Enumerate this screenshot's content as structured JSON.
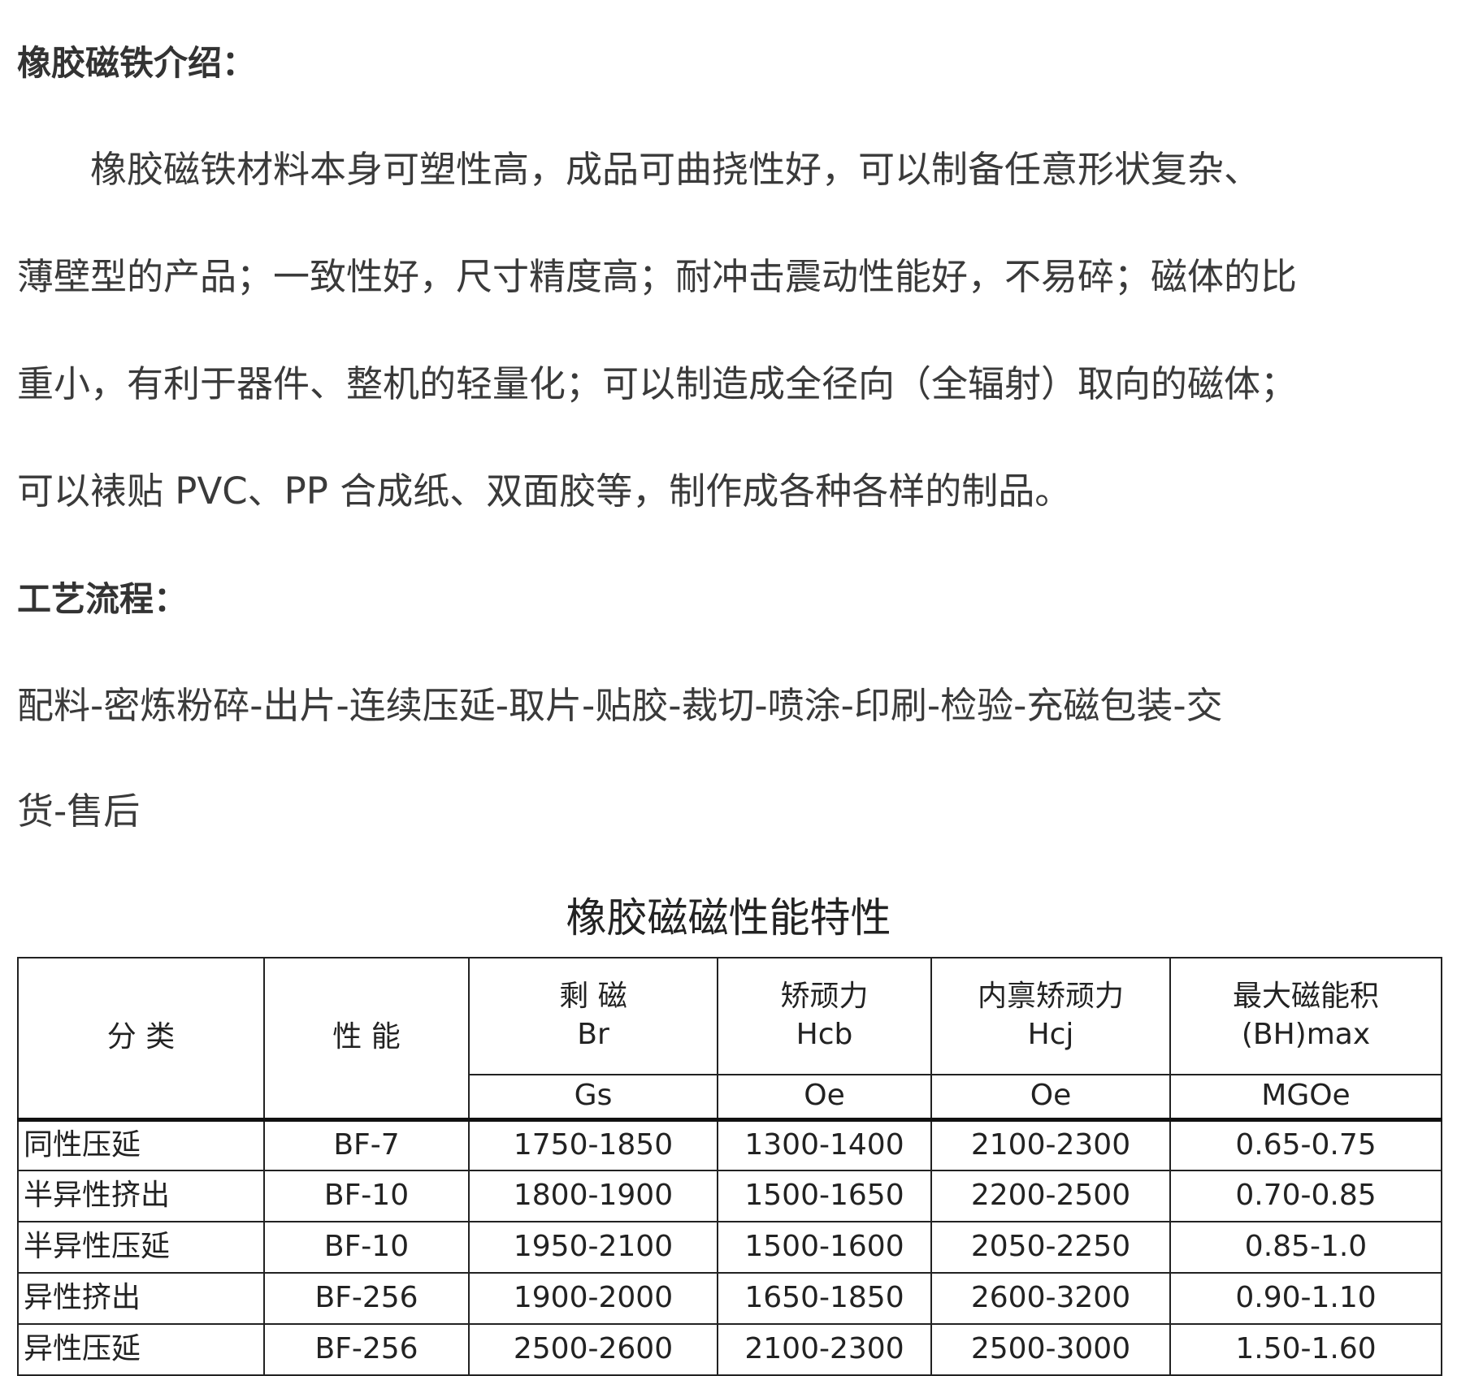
{
  "intro": {
    "heading": "橡胶磁铁介绍：",
    "lines": [
      "　　橡胶磁铁材料本身可塑性高，成品可曲挠性好，可以制备任意形状复杂、",
      "薄壁型的产品；一致性好，尺寸精度高；耐冲击震动性能好，不易碎；磁体的比",
      "重小，有利于器件、整机的轻量化；可以制造成全径向（全辐射）取向的磁体；",
      "可以裱贴 PVC、PP 合成纸、双面胶等，制作成各种各样的制品。"
    ]
  },
  "process": {
    "heading": "工艺流程：",
    "lines": [
      "配料-密炼粉碎-出片-连续压延-取片-贴胶-裁切-喷涂-印刷-检验-充磁包装-交",
      "货-售后"
    ]
  },
  "table": {
    "title": "橡胶磁磁性能特性",
    "headers": {
      "category": "分 类",
      "grade": "性 能",
      "br": {
        "name": "剩 磁",
        "symbol": "Br",
        "unit": "Gs"
      },
      "hcb": {
        "name": "矫顽力",
        "symbol": "Hcb",
        "unit": "Oe"
      },
      "hcj": {
        "name": "内禀矫顽力",
        "symbol": "Hcj",
        "unit": "Oe"
      },
      "bh": {
        "name": "最大磁能积",
        "symbol": "(BH)max",
        "unit": "MGOe"
      }
    },
    "rows": [
      [
        "同性压延",
        "BF-7",
        "1750-1850",
        "1300-1400",
        "2100-2300",
        "0.65-0.75"
      ],
      [
        "半异性挤出",
        "BF-10",
        "1800-1900",
        "1500-1650",
        "2200-2500",
        "0.70-0.85"
      ],
      [
        "半异性压延",
        "BF-10",
        "1950-2100",
        "1500-1600",
        "2050-2250",
        "0.85-1.0"
      ],
      [
        "异性挤出",
        "BF-256",
        "1900-2000",
        "1650-1850",
        "2600-3200",
        "0.90-1.10"
      ],
      [
        "异性压延",
        "BF-256",
        "2500-2600",
        "2100-2300",
        "2500-3000",
        "1.50-1.60"
      ]
    ]
  }
}
